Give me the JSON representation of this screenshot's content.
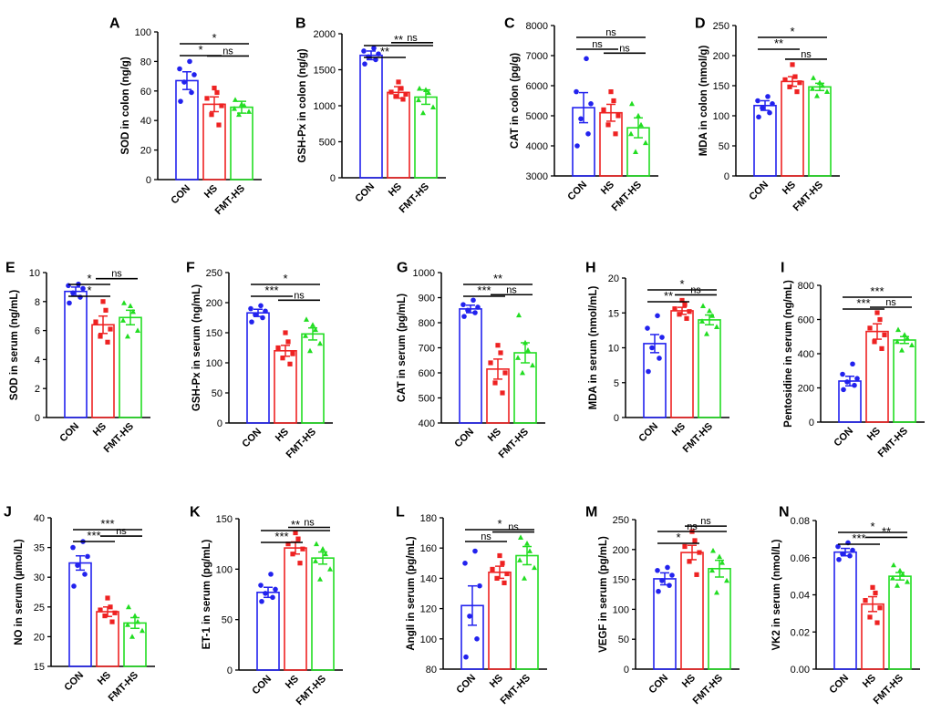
{
  "figure": {
    "colors": {
      "CON": "#2222ee",
      "HS": "#ee2222",
      "FMT-HS": "#22dd22",
      "axis": "#000000"
    },
    "groups": [
      "CON",
      "HS",
      "FMT-HS"
    ]
  },
  "chart_data": [
    {
      "panel": "A",
      "type": "bar",
      "ylabel": "SOD in colon (ng/g)",
      "ylim": [
        0,
        100
      ],
      "ticks": [
        0,
        20,
        40,
        60,
        80,
        100
      ],
      "categories": [
        "CON",
        "HS",
        "FMT-HS"
      ],
      "values": [
        67,
        51,
        49
      ],
      "errors": [
        6,
        5,
        4
      ],
      "points": [
        [
          53,
          59,
          66,
          71,
          75,
          80
        ],
        [
          37,
          44,
          50,
          55,
          59,
          62
        ],
        [
          44,
          46,
          48,
          50,
          51,
          54
        ]
      ],
      "significance": [
        {
          "pair": [
            0,
            2
          ],
          "label": "*"
        },
        {
          "pair": [
            0,
            1
          ],
          "label": "*"
        },
        {
          "pair": [
            1,
            2
          ],
          "label": "ns"
        }
      ]
    },
    {
      "panel": "B",
      "type": "bar",
      "ylabel": "GSH-Px in colon (ng/g)",
      "ylim": [
        0,
        2000
      ],
      "ticks": [
        0,
        500,
        1000,
        1500,
        2000
      ],
      "categories": [
        "CON",
        "HS",
        "FMT-HS"
      ],
      "values": [
        1700,
        1185,
        1120
      ],
      "errors": [
        60,
        80,
        100
      ],
      "points": [
        [
          1580,
          1640,
          1680,
          1720,
          1760,
          1800
        ],
        [
          1090,
          1130,
          1160,
          1190,
          1240,
          1330
        ],
        [
          900,
          980,
          1080,
          1180,
          1220,
          1240
        ]
      ],
      "significance": [
        {
          "pair": [
            0,
            2
          ],
          "label": "**"
        },
        {
          "pair": [
            0,
            1
          ],
          "label": "**"
        },
        {
          "pair": [
            1,
            2
          ],
          "label": "ns"
        }
      ]
    },
    {
      "panel": "C",
      "type": "bar",
      "ylabel": "CAT in colon (pg/g)",
      "ylim": [
        3000,
        8000
      ],
      "ticks": [
        3000,
        4000,
        5000,
        6000,
        7000,
        8000
      ],
      "categories": [
        "CON",
        "HS",
        "FMT-HS"
      ],
      "values": [
        5270,
        5100,
        4600
      ],
      "errors": [
        500,
        280,
        330
      ],
      "points": [
        [
          4000,
          4400,
          4900,
          5400,
          5800,
          6900
        ],
        [
          4400,
          4700,
          5000,
          5200,
          5500,
          5800
        ],
        [
          3800,
          4100,
          4400,
          4700,
          5000,
          5400
        ]
      ],
      "significance": [
        {
          "pair": [
            0,
            2
          ],
          "label": "ns"
        },
        {
          "pair": [
            0,
            1
          ],
          "label": "ns"
        },
        {
          "pair": [
            1,
            2
          ],
          "label": "ns"
        }
      ]
    },
    {
      "panel": "D",
      "type": "bar",
      "ylabel": "MDA in colon (nmol/g)",
      "ylim": [
        0,
        250
      ],
      "ticks": [
        0,
        50,
        100,
        150,
        200,
        250
      ],
      "categories": [
        "CON",
        "HS",
        "FMT-HS"
      ],
      "values": [
        117,
        157,
        148
      ],
      "errors": [
        8,
        8,
        6
      ],
      "points": [
        [
          98,
          105,
          113,
          120,
          125,
          132
        ],
        [
          140,
          148,
          155,
          160,
          165,
          185
        ],
        [
          133,
          140,
          145,
          150,
          155,
          163
        ]
      ],
      "significance": [
        {
          "pair": [
            0,
            2
          ],
          "label": "*"
        },
        {
          "pair": [
            0,
            1
          ],
          "label": "**"
        },
        {
          "pair": [
            1,
            2
          ],
          "label": "ns"
        }
      ]
    },
    {
      "panel": "E",
      "type": "bar",
      "ylabel": "SOD in serum (ng/mL)",
      "ylim": [
        0,
        10
      ],
      "ticks": [
        0,
        2,
        4,
        6,
        8,
        10
      ],
      "categories": [
        "CON",
        "HS",
        "FMT-HS"
      ],
      "values": [
        8.7,
        6.4,
        6.9
      ],
      "errors": [
        0.3,
        0.6,
        0.5
      ],
      "points": [
        [
          7.9,
          8.3,
          8.6,
          8.9,
          9.1,
          9.2
        ],
        [
          5.2,
          5.6,
          6.1,
          6.6,
          7.4,
          8.0
        ],
        [
          5.6,
          6.0,
          6.7,
          7.3,
          7.7,
          7.9
        ]
      ],
      "significance": [
        {
          "pair": [
            0,
            1
          ],
          "label": "*"
        },
        {
          "pair": [
            0,
            1
          ],
          "label": "*"
        },
        {
          "pair": [
            1,
            2
          ],
          "label": "ns"
        }
      ]
    },
    {
      "panel": "F",
      "type": "bar",
      "ylabel": "GSH-Px in serum (ng/mL)",
      "ylim": [
        0,
        250
      ],
      "ticks": [
        0,
        50,
        100,
        150,
        200,
        250
      ],
      "categories": [
        "CON",
        "HS",
        "FMT-HS"
      ],
      "values": [
        183,
        120,
        148
      ],
      "errors": [
        6,
        9,
        10
      ],
      "points": [
        [
          168,
          175,
          180,
          186,
          190,
          195
        ],
        [
          98,
          108,
          115,
          125,
          135,
          150
        ],
        [
          120,
          132,
          145,
          155,
          163,
          172
        ]
      ],
      "significance": [
        {
          "pair": [
            0,
            2
          ],
          "label": "*"
        },
        {
          "pair": [
            0,
            1
          ],
          "label": "***"
        },
        {
          "pair": [
            1,
            2
          ],
          "label": "ns"
        }
      ]
    },
    {
      "panel": "G",
      "type": "bar",
      "ylabel": "CAT in serum (pg/mL)",
      "ylim": [
        400,
        1000
      ],
      "ticks": [
        400,
        500,
        600,
        700,
        800,
        900,
        1000
      ],
      "categories": [
        "CON",
        "HS",
        "FMT-HS"
      ],
      "values": [
        855,
        615,
        680
      ],
      "errors": [
        15,
        40,
        40
      ],
      "points": [
        [
          825,
          840,
          850,
          862,
          872,
          890
        ],
        [
          520,
          560,
          600,
          640,
          680,
          710
        ],
        [
          600,
          630,
          660,
          690,
          720,
          830
        ]
      ],
      "significance": [
        {
          "pair": [
            0,
            2
          ],
          "label": "**"
        },
        {
          "pair": [
            0,
            1
          ],
          "label": "***"
        },
        {
          "pair": [
            1,
            2
          ],
          "label": "ns"
        }
      ]
    },
    {
      "panel": "H",
      "type": "bar",
      "ylabel": "MDA in serum (nmol/mL)",
      "ylim": [
        0,
        20
      ],
      "ticks": [
        0,
        5,
        10,
        15,
        20
      ],
      "categories": [
        "CON",
        "HS",
        "FMT-HS"
      ],
      "values": [
        10.6,
        15.3,
        14.0
      ],
      "errors": [
        1.3,
        0.5,
        0.7
      ],
      "points": [
        [
          6.6,
          8.5,
          10.0,
          11.5,
          12.8,
          14.6
        ],
        [
          14.2,
          14.8,
          15.2,
          15.6,
          16.2,
          16.8
        ],
        [
          12.0,
          13.0,
          13.8,
          14.6,
          15.3,
          16.0
        ]
      ],
      "significance": [
        {
          "pair": [
            0,
            2
          ],
          "label": "*"
        },
        {
          "pair": [
            0,
            1
          ],
          "label": "**"
        },
        {
          "pair": [
            1,
            2
          ],
          "label": "ns"
        }
      ]
    },
    {
      "panel": "I",
      "type": "bar",
      "ylabel": "Pentosidine in serum (ng/mL)",
      "ylim": [
        0,
        800
      ],
      "ticks": [
        0,
        200,
        400,
        600,
        800
      ],
      "categories": [
        "CON",
        "HS",
        "FMT-HS"
      ],
      "values": [
        240,
        530,
        480
      ],
      "errors": [
        28,
        45,
        20
      ],
      "points": [
        [
          190,
          215,
          235,
          255,
          280,
          340
        ],
        [
          430,
          470,
          510,
          550,
          600,
          640
        ],
        [
          420,
          450,
          470,
          490,
          510,
          540
        ]
      ],
      "significance": [
        {
          "pair": [
            0,
            2
          ],
          "label": "***"
        },
        {
          "pair": [
            0,
            1
          ],
          "label": "***"
        },
        {
          "pair": [
            1,
            2
          ],
          "label": "ns"
        }
      ]
    },
    {
      "panel": "J",
      "type": "bar",
      "ylabel": "NO in serum (µmol/L)",
      "ylim": [
        15,
        40
      ],
      "ticks": [
        15,
        20,
        25,
        30,
        35,
        40
      ],
      "categories": [
        "CON",
        "HS",
        "FMT-HS"
      ],
      "values": [
        32.4,
        24.2,
        22.3
      ],
      "errors": [
        1.2,
        0.8,
        0.9
      ],
      "points": [
        [
          28.5,
          30.5,
          32.0,
          33.5,
          35.0,
          36.0
        ],
        [
          22.5,
          23.5,
          24.0,
          24.5,
          25.0,
          26.5
        ],
        [
          20.0,
          21.0,
          22.0,
          22.5,
          23.5,
          25.0
        ]
      ],
      "significance": [
        {
          "pair": [
            0,
            2
          ],
          "label": "***"
        },
        {
          "pair": [
            0,
            1
          ],
          "label": "***"
        },
        {
          "pair": [
            1,
            2
          ],
          "label": "ns"
        }
      ]
    },
    {
      "panel": "K",
      "type": "bar",
      "ylabel": "ET-1 in serum (pg/mL)",
      "ylim": [
        0,
        150
      ],
      "ticks": [
        0,
        50,
        100,
        150
      ],
      "categories": [
        "CON",
        "HS",
        "FMT-HS"
      ],
      "values": [
        77,
        121,
        111
      ],
      "errors": [
        5,
        6,
        6
      ],
      "points": [
        [
          68,
          72,
          76,
          80,
          84,
          95
        ],
        [
          106,
          115,
          120,
          125,
          130,
          136
        ],
        [
          90,
          100,
          108,
          115,
          120,
          125
        ]
      ],
      "significance": [
        {
          "pair": [
            0,
            2
          ],
          "label": "**"
        },
        {
          "pair": [
            0,
            1
          ],
          "label": "***"
        },
        {
          "pair": [
            1,
            2
          ],
          "label": "ns"
        }
      ]
    },
    {
      "panel": "L",
      "type": "bar",
      "ylabel": "AngII in serum (pg/mL)",
      "ylim": [
        80,
        180
      ],
      "ticks": [
        80,
        100,
        120,
        140,
        160,
        180
      ],
      "categories": [
        "CON",
        "HS",
        "FMT-HS"
      ],
      "values": [
        122,
        144,
        155
      ],
      "errors": [
        13,
        4,
        6
      ],
      "points": [
        [
          88,
          100,
          115,
          135,
          150,
          158
        ],
        [
          137,
          140,
          143,
          146,
          150,
          155
        ],
        [
          140,
          147,
          152,
          158,
          163,
          167
        ]
      ],
      "significance": [
        {
          "pair": [
            0,
            2
          ],
          "label": "*"
        },
        {
          "pair": [
            0,
            1
          ],
          "label": "ns"
        },
        {
          "pair": [
            1,
            2
          ],
          "label": "ns"
        }
      ]
    },
    {
      "panel": "M",
      "type": "bar",
      "ylabel": "VEGF in serum (pg/mL)",
      "ylim": [
        0,
        250
      ],
      "ticks": [
        0,
        50,
        100,
        150,
        200,
        250
      ],
      "categories": [
        "CON",
        "HS",
        "FMT-HS"
      ],
      "values": [
        151,
        195,
        168
      ],
      "errors": [
        10,
        12,
        14
      ],
      "points": [
        [
          130,
          140,
          148,
          157,
          165,
          170
        ],
        [
          158,
          180,
          195,
          205,
          215,
          230
        ],
        [
          128,
          148,
          165,
          178,
          188,
          198
        ]
      ],
      "significance": [
        {
          "pair": [
            0,
            2
          ],
          "label": "ns"
        },
        {
          "pair": [
            0,
            1
          ],
          "label": "*"
        },
        {
          "pair": [
            1,
            2
          ],
          "label": "ns"
        }
      ]
    },
    {
      "panel": "N",
      "type": "bar",
      "ylabel": "VK2 in serum (nmol/L)",
      "ylim": [
        0,
        0.08
      ],
      "ticks": [
        0.0,
        0.02,
        0.04,
        0.06,
        0.08
      ],
      "categories": [
        "CON",
        "HS",
        "FMT-HS"
      ],
      "values": [
        0.063,
        0.035,
        0.05
      ],
      "errors": [
        0.002,
        0.004,
        0.002
      ],
      "points": [
        [
          0.059,
          0.061,
          0.062,
          0.064,
          0.066,
          0.068
        ],
        [
          0.025,
          0.028,
          0.033,
          0.037,
          0.041,
          0.044
        ],
        [
          0.045,
          0.047,
          0.049,
          0.051,
          0.053,
          0.056
        ]
      ],
      "significance": [
        {
          "pair": [
            0,
            2
          ],
          "label": "*"
        },
        {
          "pair": [
            0,
            1
          ],
          "label": "***"
        },
        {
          "pair": [
            1,
            2
          ],
          "label": "**"
        }
      ]
    }
  ]
}
